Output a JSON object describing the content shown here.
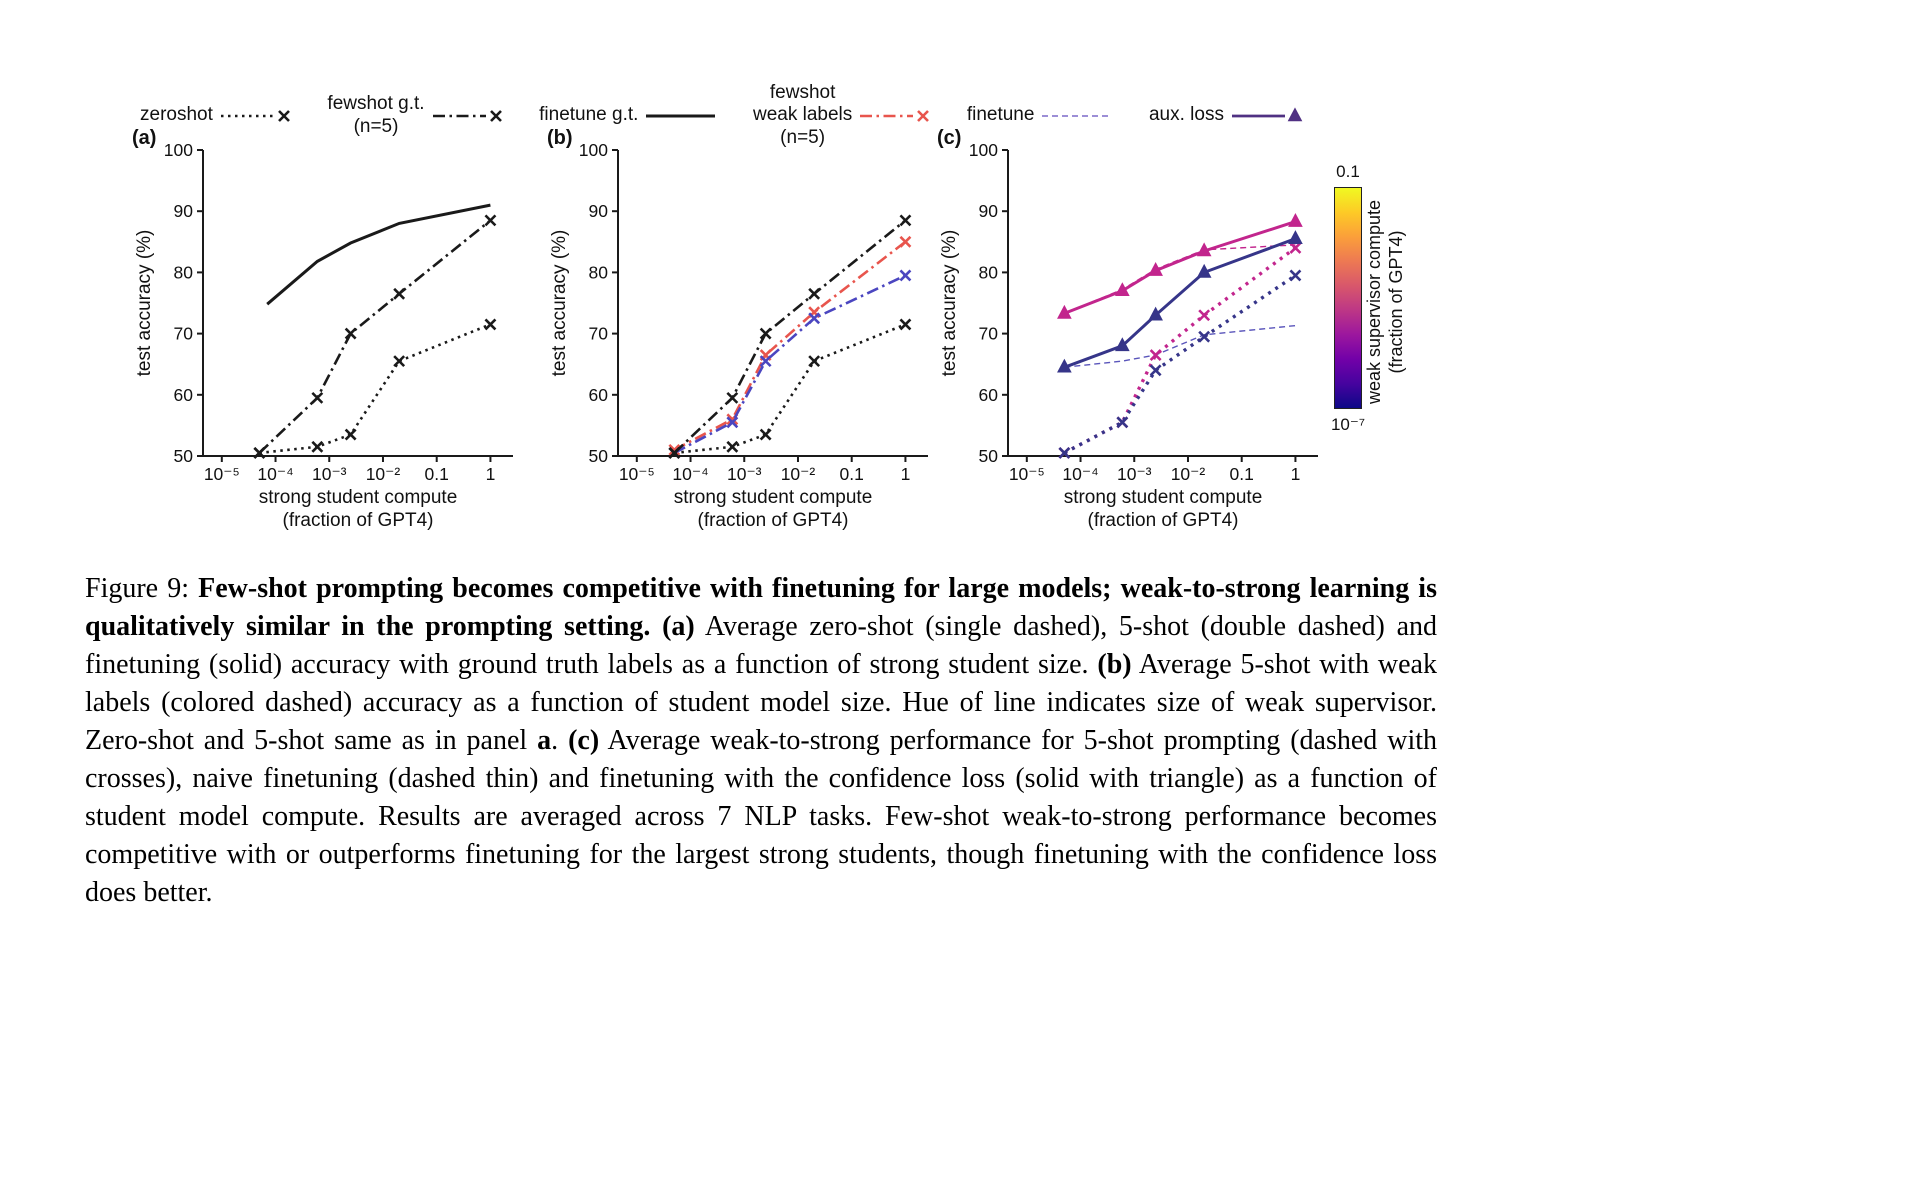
{
  "legend": [
    {
      "label": "zeroshot",
      "style": "dotted",
      "marker": "x",
      "color": "#1a1a1a",
      "width": 2.6
    },
    {
      "label": "fewshot g.t.\n(n=5)",
      "style": "dashdot",
      "marker": "x",
      "color": "#1a1a1a",
      "width": 2.6
    },
    {
      "label": "finetune g.t.",
      "style": "solid",
      "marker": "none",
      "color": "#1a1a1a",
      "width": 3
    },
    {
      "label": "fewshot\nweak labels\n(n=5)",
      "style": "dashdot",
      "marker": "x",
      "color": "#e8554d",
      "width": 2.6
    },
    {
      "label": "finetune",
      "style": "dashed-thin",
      "marker": "none",
      "color": "#7b68c8",
      "width": 1.6
    },
    {
      "label": "aux. loss",
      "style": "solid",
      "marker": "triangle",
      "color": "#503183",
      "width": 2.8
    }
  ],
  "colorbar": {
    "top_label": "0.1",
    "bottom_label": "10⁻⁷",
    "label_line1": "weak supervisor compute",
    "label_line2": "(fraction of GPT4)",
    "gradient_stops": [
      "#0d0887",
      "#46039f",
      "#7201a8",
      "#9c179e",
      "#bd3786",
      "#d8576b",
      "#ed7953",
      "#fb9f3a",
      "#fdca26",
      "#f0f921"
    ]
  },
  "chart_data": [
    {
      "type": "line",
      "panel_label": "(a)",
      "xlabel": [
        "strong student compute",
        "(fraction of GPT4)"
      ],
      "ylabel": "test accuracy (%)",
      "x_tick_labels": [
        "10⁻⁵",
        "10⁻⁴",
        "10⁻³",
        "10⁻²",
        "0.1",
        "1"
      ],
      "x_tick_logs": [
        -5,
        -4,
        -3,
        -2,
        -1,
        0
      ],
      "y_ticks": [
        50,
        60,
        70,
        80,
        90,
        100
      ],
      "ylim": [
        50,
        100
      ],
      "xscale": "log",
      "series": [
        {
          "name": "zeroshot",
          "style": "dotted",
          "marker": "x",
          "color": "#1a1a1a",
          "width": 2.6,
          "x": [
            5e-05,
            0.0006,
            0.0025,
            0.02,
            1
          ],
          "y": [
            50.5,
            51.5,
            53.5,
            65.5,
            71.5
          ]
        },
        {
          "name": "fewshot-gt",
          "style": "dashdot",
          "marker": "x",
          "color": "#1a1a1a",
          "width": 2.6,
          "x": [
            5e-05,
            0.0006,
            0.0025,
            0.02,
            1
          ],
          "y": [
            50.5,
            59.5,
            70,
            76.5,
            88.5
          ]
        },
        {
          "name": "finetune-gt",
          "style": "solid",
          "marker": "none",
          "color": "#1a1a1a",
          "width": 3,
          "x": [
            7e-05,
            0.0006,
            0.0025,
            0.02,
            1
          ],
          "y": [
            74.8,
            81.8,
            84.8,
            88,
            91
          ]
        }
      ]
    },
    {
      "type": "line",
      "panel_label": "(b)",
      "xlabel": [
        "strong student compute",
        "(fraction of GPT4)"
      ],
      "ylabel": "test accuracy (%)",
      "x_tick_labels": [
        "10⁻⁵",
        "10⁻⁴",
        "10⁻³",
        "10⁻²",
        "0.1",
        "1"
      ],
      "x_tick_logs": [
        -5,
        -4,
        -3,
        -2,
        -1,
        0
      ],
      "y_ticks": [
        50,
        60,
        70,
        80,
        90,
        100
      ],
      "ylim": [
        50,
        100
      ],
      "xscale": "log",
      "series": [
        {
          "name": "fewshot-weak-labels-large-supervisor",
          "style": "dashdot",
          "marker": "x",
          "color": "#e8554d",
          "width": 2.6,
          "x": [
            5e-05,
            0.0006,
            0.0025,
            0.02,
            1
          ],
          "y": [
            51,
            56,
            66.5,
            73.5,
            85
          ]
        },
        {
          "name": "fewshot-weak-labels-small-supervisor",
          "style": "dashdot",
          "marker": "x",
          "color": "#4b46c0",
          "width": 2.6,
          "x": [
            5e-05,
            0.0006,
            0.0025,
            0.02,
            1
          ],
          "y": [
            50.5,
            55.5,
            65.5,
            72.5,
            79.5
          ]
        },
        {
          "name": "zeroshot",
          "style": "dotted",
          "marker": "x",
          "color": "#1a1a1a",
          "width": 2.6,
          "x": [
            5e-05,
            0.0006,
            0.0025,
            0.02,
            1
          ],
          "y": [
            50.5,
            51.5,
            53.5,
            65.5,
            71.5
          ]
        },
        {
          "name": "fewshot-gt",
          "style": "dashdot",
          "marker": "x",
          "color": "#1a1a1a",
          "width": 2.6,
          "x": [
            5e-05,
            0.0006,
            0.0025,
            0.02,
            1
          ],
          "y": [
            50.5,
            59.5,
            70,
            76.5,
            88.5
          ]
        }
      ]
    },
    {
      "type": "line",
      "panel_label": "(c)",
      "xlabel": [
        "strong student compute",
        "(fraction of GPT4)"
      ],
      "ylabel": "test accuracy (%)",
      "x_tick_labels": [
        "10⁻⁵",
        "10⁻⁴",
        "10⁻³",
        "10⁻²",
        "0.1",
        "1"
      ],
      "x_tick_logs": [
        -5,
        -4,
        -3,
        -2,
        -1,
        0
      ],
      "y_ticks": [
        50,
        60,
        70,
        80,
        90,
        100
      ],
      "ylim": [
        50,
        100
      ],
      "xscale": "log",
      "series": [
        {
          "name": "naive-finetune-large-supervisor",
          "style": "dashed-thin",
          "marker": "none",
          "color": "#c2258d",
          "width": 1.4,
          "x": [
            5e-05,
            0.0006,
            0.0025,
            0.02,
            1
          ],
          "y": [
            73.3,
            77.2,
            80.5,
            83.7,
            84.5
          ]
        },
        {
          "name": "naive-finetune-small-supervisor",
          "style": "dashed-thin",
          "marker": "none",
          "color": "#5a55bb",
          "width": 1.4,
          "x": [
            5e-05,
            0.0006,
            0.0025,
            0.02,
            1
          ],
          "y": [
            64.5,
            65.5,
            66.5,
            69.8,
            71.3
          ]
        },
        {
          "name": "fewshot-w2s-large-supervisor",
          "style": "dotted-heavy",
          "marker": "x",
          "color": "#c2258d",
          "width": 3.4,
          "x": [
            5e-05,
            0.0006,
            0.0025,
            0.02,
            1
          ],
          "y": [
            50.5,
            55.5,
            66.5,
            73,
            84
          ]
        },
        {
          "name": "fewshot-w2s-small-supervisor",
          "style": "dotted-heavy",
          "marker": "x",
          "color": "#363589",
          "width": 3.4,
          "x": [
            5e-05,
            0.0006,
            0.0025,
            0.02,
            1
          ],
          "y": [
            50.5,
            55.5,
            64,
            69.5,
            79.5
          ]
        },
        {
          "name": "auxloss-large-supervisor",
          "style": "solid",
          "marker": "triangle",
          "color": "#c2258d",
          "width": 3,
          "x": [
            5e-05,
            0.0006,
            0.0025,
            0.02,
            1
          ],
          "y": [
            73.3,
            77,
            80.3,
            83.5,
            88.3
          ]
        },
        {
          "name": "auxloss-small-supervisor",
          "style": "solid",
          "marker": "triangle",
          "color": "#363589",
          "width": 3,
          "x": [
            5e-05,
            0.0006,
            0.0025,
            0.02,
            1
          ],
          "y": [
            64.5,
            68,
            73,
            80,
            85.5
          ]
        }
      ]
    }
  ],
  "figure": {
    "caption_segments": [
      {
        "t": "Figure 9: ",
        "b": false
      },
      {
        "t": "Few-shot prompting becomes competitive with finetuning for large models; weak-to-strong learning is qualitatively similar in the prompting setting.",
        "b": true
      },
      {
        "t": " ",
        "b": false
      },
      {
        "t": "(a)",
        "b": true
      },
      {
        "t": " Average zero-shot (single dashed), 5-shot (double dashed) and finetuning (solid) accuracy with ground truth labels as a function of strong student size. ",
        "b": false
      },
      {
        "t": "(b)",
        "b": true
      },
      {
        "t": " Average 5-shot with weak labels (colored dashed) accuracy as a function of student model size. Hue of line indicates size of weak supervisor. Zero-shot and 5-shot same as in panel ",
        "b": false
      },
      {
        "t": "a",
        "b": true
      },
      {
        "t": ". ",
        "b": false
      },
      {
        "t": "(c)",
        "b": true
      },
      {
        "t": " Average weak-to-strong performance for 5-shot prompting (dashed with crosses), naive finetuning (dashed thin) and finetuning with the confidence loss (solid with triangle) as a function of student model compute. Results are averaged across 7 NLP tasks. Few-shot weak-to-strong performance becomes competitive with or outperforms finetuning for the largest strong students, though finetuning with the confidence loss does better.",
        "b": false
      }
    ]
  }
}
